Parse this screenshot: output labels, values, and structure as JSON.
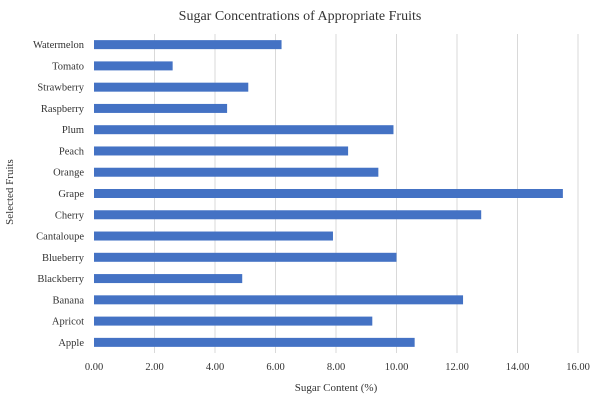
{
  "chart_data": {
    "type": "bar",
    "orientation": "horizontal",
    "title": "Sugar Concentrations of Appropriate Fruits",
    "xlabel": "Sugar Content (%)",
    "ylabel": "Selected Fruits",
    "categories": [
      "Apple",
      "Apricot",
      "Banana",
      "Blackberry",
      "Blueberry",
      "Cantaloupe",
      "Cherry",
      "Grape",
      "Orange",
      "Peach",
      "Plum",
      "Raspberry",
      "Strawberry",
      "Tomato",
      "Watermelon"
    ],
    "values": [
      10.6,
      9.2,
      12.2,
      4.9,
      10.0,
      7.9,
      12.8,
      15.5,
      9.4,
      8.4,
      9.9,
      4.4,
      5.1,
      2.6,
      6.2
    ],
    "xlim": [
      0,
      16
    ],
    "x_ticks": [
      "0.00",
      "2.00",
      "4.00",
      "6.00",
      "8.00",
      "10.00",
      "12.00",
      "14.00",
      "16.00"
    ],
    "grid": "vertical",
    "legend": "none",
    "bar_color": "#4472c4"
  }
}
